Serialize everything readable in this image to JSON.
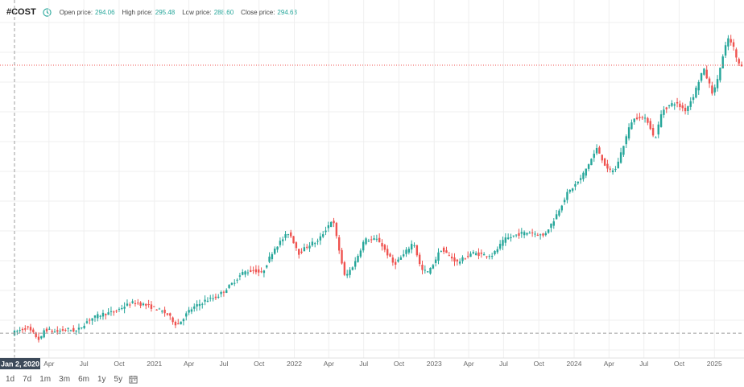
{
  "header": {
    "ticker": "#COST",
    "open_label": "Open price:",
    "open_value": "294.06",
    "high_label": "High price:",
    "high_value": "295.48",
    "low_label": "Low price:",
    "low_value": "288.60",
    "close_label": "Close price:",
    "close_value": "294.63"
  },
  "periods": [
    "1d",
    "7d",
    "1m",
    "3m",
    "6m",
    "1y",
    "5y"
  ],
  "colors": {
    "up": "#26a69a",
    "down": "#ef5350",
    "grid": "#efefef",
    "crosshair": "#9e9e9e",
    "cursor_label_bg": "#3d4a5a"
  },
  "chart_data": {
    "type": "candlestick",
    "x_start": "2020-01-02",
    "x_end": "2025-03-15",
    "cursor_label": "Jan 2, 2020",
    "x_ticks": [
      {
        "label": "Apr",
        "date": "2020-04-01"
      },
      {
        "label": "Jul",
        "date": "2020-07-01"
      },
      {
        "label": "Oct",
        "date": "2020-10-01"
      },
      {
        "label": "2021",
        "date": "2021-01-01"
      },
      {
        "label": "Apr",
        "date": "2021-04-01"
      },
      {
        "label": "Jul",
        "date": "2021-07-01"
      },
      {
        "label": "Oct",
        "date": "2021-10-01"
      },
      {
        "label": "2022",
        "date": "2022-01-01"
      },
      {
        "label": "Apr",
        "date": "2022-04-01"
      },
      {
        "label": "Jul",
        "date": "2022-07-01"
      },
      {
        "label": "Oct",
        "date": "2022-10-01"
      },
      {
        "label": "2023",
        "date": "2023-01-01"
      },
      {
        "label": "Apr",
        "date": "2023-04-01"
      },
      {
        "label": "Jul",
        "date": "2023-07-01"
      },
      {
        "label": "Oct",
        "date": "2023-10-01"
      },
      {
        "label": "2024",
        "date": "2024-01-01"
      },
      {
        "label": "Apr",
        "date": "2024-04-01"
      },
      {
        "label": "Jul",
        "date": "2024-07-01"
      },
      {
        "label": "Oct",
        "date": "2024-10-01"
      },
      {
        "label": "2025",
        "date": "2025-01-01"
      }
    ],
    "y_range": [
      240,
      1110
    ],
    "cursor_price": 294.63,
    "last_price": 998,
    "trend": [
      [
        "2020-01-02",
        294
      ],
      [
        "2020-02-10",
        310
      ],
      [
        "2020-03-16",
        275
      ],
      [
        "2020-03-27",
        305
      ],
      [
        "2020-04-25",
        298
      ],
      [
        "2020-05-25",
        305
      ],
      [
        "2020-06-20",
        300
      ],
      [
        "2020-07-20",
        330
      ],
      [
        "2020-08-25",
        345
      ],
      [
        "2020-09-25",
        350
      ],
      [
        "2020-10-20",
        365
      ],
      [
        "2020-11-15",
        375
      ],
      [
        "2020-12-10",
        370
      ],
      [
        "2021-01-10",
        360
      ],
      [
        "2021-02-10",
        345
      ],
      [
        "2021-03-08",
        315
      ],
      [
        "2021-04-10",
        355
      ],
      [
        "2021-05-20",
        380
      ],
      [
        "2021-06-20",
        390
      ],
      [
        "2021-07-25",
        420
      ],
      [
        "2021-08-28",
        455
      ],
      [
        "2021-09-28",
        460
      ],
      [
        "2021-10-15",
        450
      ],
      [
        "2021-11-15",
        515
      ],
      [
        "2021-12-25",
        560
      ],
      [
        "2022-01-20",
        505
      ],
      [
        "2022-02-20",
        530
      ],
      [
        "2022-03-10",
        535
      ],
      [
        "2022-04-18",
        595
      ],
      [
        "2022-05-20",
        440
      ],
      [
        "2022-06-15",
        480
      ],
      [
        "2022-07-10",
        540
      ],
      [
        "2022-08-15",
        540
      ],
      [
        "2022-09-25",
        475
      ],
      [
        "2022-10-20",
        500
      ],
      [
        "2022-11-15",
        535
      ],
      [
        "2022-12-05",
        460
      ],
      [
        "2022-12-25",
        455
      ],
      [
        "2023-01-25",
        515
      ],
      [
        "2023-03-10",
        480
      ],
      [
        "2023-04-15",
        505
      ],
      [
        "2023-05-20",
        500
      ],
      [
        "2023-06-10",
        500
      ],
      [
        "2023-07-10",
        540
      ],
      [
        "2023-08-15",
        555
      ],
      [
        "2023-09-15",
        560
      ],
      [
        "2023-10-20",
        550
      ],
      [
        "2023-11-15",
        590
      ],
      [
        "2023-12-20",
        660
      ],
      [
        "2024-01-25",
        700
      ],
      [
        "2024-03-08",
        780
      ],
      [
        "2024-04-05",
        720
      ],
      [
        "2024-04-25",
        725
      ],
      [
        "2024-06-05",
        850
      ],
      [
        "2024-06-25",
        865
      ],
      [
        "2024-07-20",
        850
      ],
      [
        "2024-08-05",
        800
      ],
      [
        "2024-08-25",
        880
      ],
      [
        "2024-09-25",
        900
      ],
      [
        "2024-10-25",
        880
      ],
      [
        "2024-11-15",
        920
      ],
      [
        "2024-12-10",
        990
      ],
      [
        "2025-01-05",
        920
      ],
      [
        "2025-02-12",
        1070
      ],
      [
        "2025-03-01",
        1040
      ],
      [
        "2025-03-10",
        1000
      ]
    ]
  }
}
